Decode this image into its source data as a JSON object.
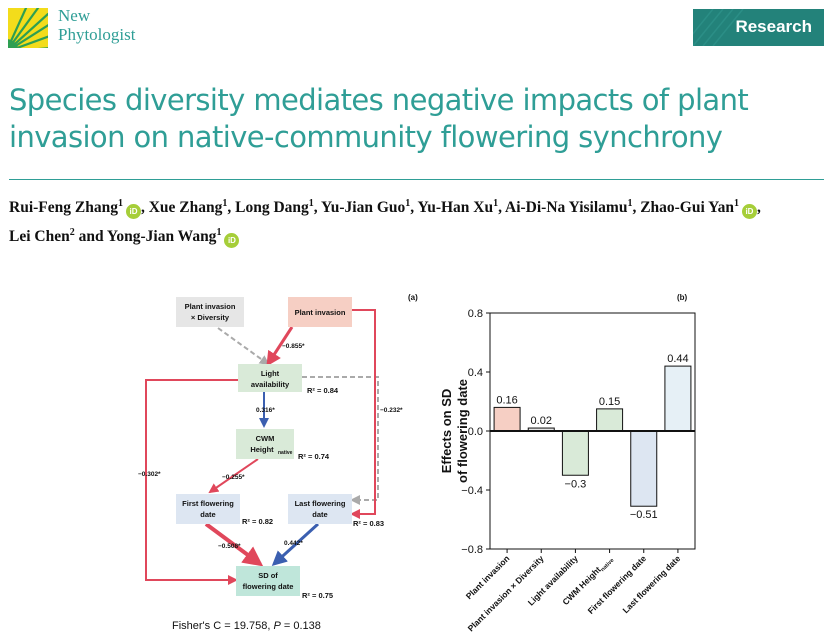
{
  "header": {
    "journal_line1": "New",
    "journal_line2": "Phytologist",
    "section_banner": "Research"
  },
  "article": {
    "title": "Species diversity mediates negative impacts of plant invasion on native-community flowering synchrony",
    "authors": [
      {
        "name": "Rui-Feng Zhang",
        "aff": "1",
        "orcid": true
      },
      {
        "name": "Xue Zhang",
        "aff": "1",
        "orcid": false
      },
      {
        "name": "Long Dang",
        "aff": "1",
        "orcid": false
      },
      {
        "name": "Yu-Jian Guo",
        "aff": "1",
        "orcid": false
      },
      {
        "name": "Yu-Han Xu",
        "aff": "1",
        "orcid": false
      },
      {
        "name": "Ai-Di-Na Yisilamu",
        "aff": "1",
        "orcid": false
      },
      {
        "name": "Zhao-Gui Yan",
        "aff": "1",
        "orcid": true
      },
      {
        "name": "Lei Chen",
        "aff": "2",
        "orcid": false
      },
      {
        "name": "Yong-Jian Wang",
        "aff": "1",
        "orcid": true
      }
    ],
    "author_separator": ",",
    "author_last_join": "and",
    "orcid_label": "iD"
  },
  "path_diagram": {
    "panel_label": "(a)",
    "colors": {
      "negative": "#e0475b",
      "positive": "#3b5fb0",
      "nonsignificant": "#aaaaaa"
    },
    "nodes": {
      "interaction": {
        "line1": "Plant invasion",
        "line2": "× Diversity",
        "fill": "#e6e6e6"
      },
      "invasion": {
        "line1": "Plant invasion",
        "fill": "#f6cfc4"
      },
      "light": {
        "line1": "Light",
        "line2": "availability",
        "r2": "R² = 0.84",
        "fill": "#d9ead8"
      },
      "cwm": {
        "line1": "CWM",
        "line2": "Height",
        "line2_sub": "native",
        "r2": "R² = 0.74",
        "fill": "#d9ead8"
      },
      "first": {
        "line1": "First flowering",
        "line2": "date",
        "r2": "R² = 0.82",
        "fill": "#dde6f2"
      },
      "last": {
        "line1": "Last flowering",
        "line2": "date",
        "r2": "R² = 0.83",
        "fill": "#dde6f2"
      },
      "sd": {
        "line1": "SD of",
        "line2": "flowering date",
        "r2": "R² = 0.75",
        "fill": "#bfe6da"
      }
    },
    "paths": {
      "invasion_light": "−0.855*",
      "light_cwm": "0.316*",
      "cwm_first": "−0.255*",
      "invasion_last": "−0.232*",
      "light_sd": "−0.302*",
      "first_sd": "−0.508*",
      "last_sd": "0.442*"
    },
    "fisher_prefix": "Fisher's C = 19.758, ",
    "fisher_p_symbol": "P",
    "fisher_p_value": " = 0.138"
  },
  "chart_data": {
    "type": "bar",
    "panel_label": "(b)",
    "ylabel_line1": "Effects on SD",
    "ylabel_line2": "of flowering date",
    "ylim": [
      -0.8,
      0.8
    ],
    "yticks": [
      0.8,
      0.4,
      0.0,
      -0.4,
      -0.8
    ],
    "ytick_labels": [
      "0.8",
      "0.4",
      "0.0",
      "−0.4",
      "−0.8"
    ],
    "categories": [
      "Plant invasion",
      "Plant invasion × Diversity",
      "Light availability",
      "CWM Height",
      "First flowering date",
      "Last flowering date"
    ],
    "category_subscripts": [
      "",
      "",
      "",
      "native",
      "",
      ""
    ],
    "values": [
      0.16,
      0.02,
      -0.3,
      0.15,
      -0.51,
      0.44
    ],
    "value_labels": [
      "0.16",
      "0.02",
      "−0.3",
      "0.15",
      "−0.51",
      "0.44"
    ],
    "colors": [
      "#f6cfc4",
      "#e6e6e6",
      "#d9ead8",
      "#d9ead8",
      "#dde6f2",
      "#e6f0f6"
    ],
    "grid": false
  }
}
